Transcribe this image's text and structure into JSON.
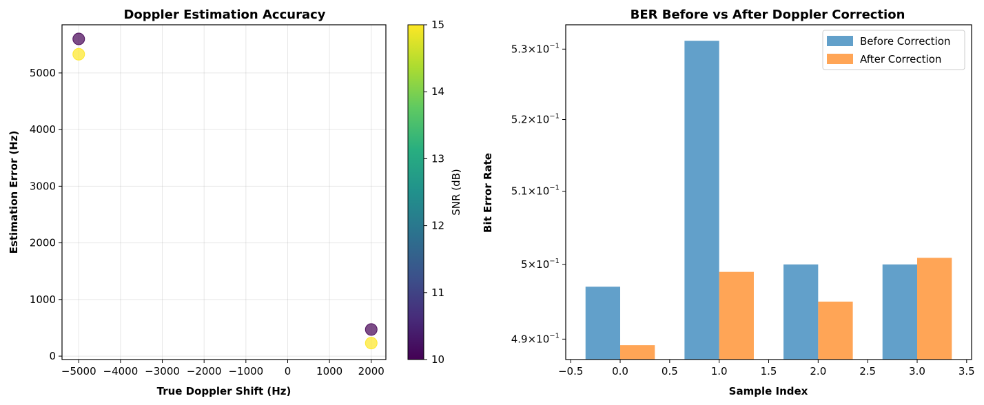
{
  "chart_data": [
    {
      "type": "scatter",
      "title": "Doppler Estimation Accuracy",
      "xlabel": "True Doppler Shift (Hz)",
      "ylabel": "Estimation Error (Hz)",
      "xlim": [
        -5400,
        2350
      ],
      "ylim": [
        -60,
        5850
      ],
      "xticks": [
        -5000,
        -4000,
        -3000,
        -2000,
        -1000,
        0,
        1000,
        2000
      ],
      "yticks": [
        0,
        1000,
        2000,
        3000,
        4000,
        5000
      ],
      "grid": true,
      "points": [
        {
          "x": -5000,
          "y": 5600,
          "snr": 10
        },
        {
          "x": -5000,
          "y": 5330,
          "snr": 15
        },
        {
          "x": 2000,
          "y": 470,
          "snr": 10
        },
        {
          "x": 2000,
          "y": 230,
          "snr": 15
        }
      ],
      "colorbar": {
        "label": "SNR (dB)",
        "min": 10,
        "max": 15,
        "ticks": [
          10,
          11,
          12,
          13,
          14,
          15
        ],
        "colormap": "viridis"
      },
      "marker_alpha": 0.7
    },
    {
      "type": "bar",
      "title": "BER Before vs After Doppler Correction",
      "xlabel": "Sample Index",
      "ylabel": "Bit Error Rate",
      "yscale": "log",
      "xlim": [
        -0.55,
        3.55
      ],
      "ylim": [
        0.4873,
        0.5335
      ],
      "xticks": [
        -0.5,
        0.0,
        0.5,
        1.0,
        1.5,
        2.0,
        2.5,
        3.0,
        3.5
      ],
      "xtick_labels": [
        "−0.5",
        "0.0",
        "0.5",
        "1.0",
        "1.5",
        "2.0",
        "2.5",
        "3.0",
        "3.5"
      ],
      "yticks": [
        {
          "value": 0.49,
          "mantissa": "4.9",
          "exponent": "−1"
        },
        {
          "value": 0.5,
          "mantissa": "5",
          "exponent": "−1"
        },
        {
          "value": 0.51,
          "mantissa": "5.1",
          "exponent": "−1"
        },
        {
          "value": 0.52,
          "mantissa": "5.2",
          "exponent": "−1"
        },
        {
          "value": 0.53,
          "mantissa": "5.3",
          "exponent": "−1"
        }
      ],
      "categories": [
        0,
        1,
        2,
        3
      ],
      "bar_width": 0.35,
      "series": [
        {
          "name": "Before Correction",
          "values": [
            0.497,
            0.5312,
            0.5,
            0.5
          ],
          "color": "#1f77b4",
          "offset": -0.175
        },
        {
          "name": "After Correction",
          "values": [
            0.4892,
            0.499,
            0.495,
            0.5009
          ],
          "color": "#ff7f0e",
          "offset": 0.175
        }
      ],
      "bar_alpha": 0.7,
      "legend_position": "top-right",
      "grid": false
    }
  ]
}
